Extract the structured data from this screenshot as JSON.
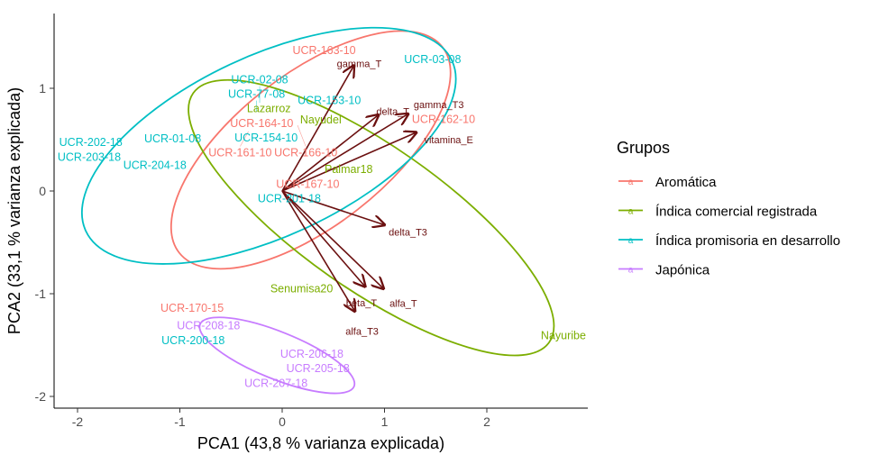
{
  "chart_data": {
    "type": "scatter",
    "subtype": "pca-biplot",
    "xlabel": "PCA1 (43,8 % varianza explicada)",
    "ylabel": "PCA2 (33,1 % varianza explicada)",
    "xlim": [
      -2.23,
      2.99
    ],
    "ylim": [
      -2.11,
      1.73
    ],
    "xticks": [
      "-2",
      "-1",
      "0",
      "1",
      "2"
    ],
    "yticks": [
      "-2",
      "-1",
      "0",
      "1"
    ],
    "grid": false,
    "legend": {
      "title": "Grupos",
      "placement": "right",
      "entries": [
        {
          "name": "Aromática",
          "color": "#F8766D"
        },
        {
          "name": "Índica comercial registrada",
          "color": "#7CAE00"
        },
        {
          "name": "Índica promisoria en desarrollo",
          "color": "#00BFC4"
        },
        {
          "name": "Japónica",
          "color": "#C77CFF"
        }
      ]
    },
    "points": [
      {
        "label": "UCR-163-10",
        "group": 0,
        "x": 0.41,
        "y": 1.32
      },
      {
        "label": "UCR-162-10",
        "group": 0,
        "x": 1.56,
        "y": 0.74
      },
      {
        "label": "UCR-161-10",
        "group": 0,
        "x": -0.33,
        "y": 0.58
      },
      {
        "label": "UCR-164-10",
        "group": 0,
        "x": -0.2,
        "y": 0.6
      },
      {
        "label": "UCR-166-10",
        "group": 0,
        "x": 0.15,
        "y": 0.64
      },
      {
        "label": "UCR-167-10",
        "group": 0,
        "x": 0.25,
        "y": 0.07
      },
      {
        "label": "UCR-170-15",
        "group": 0,
        "x": -0.88,
        "y": -1.14
      },
      {
        "label": "Lazarroz",
        "group": 1,
        "x": -0.13,
        "y": 0.8
      },
      {
        "label": "Nayudel",
        "group": 1,
        "x": 0.37,
        "y": 0.66
      },
      {
        "label": "Palmar18",
        "group": 1,
        "x": 0.65,
        "y": 0.17
      },
      {
        "label": "Senumisa20",
        "group": 1,
        "x": 0.19,
        "y": -0.95
      },
      {
        "label": "Nayuribe",
        "group": 1,
        "x": 2.76,
        "y": -1.41
      },
      {
        "label": "UCR-03-08",
        "group": 2,
        "x": 1.47,
        "y": 1.28
      },
      {
        "label": "UCR-02-08",
        "group": 2,
        "x": -0.22,
        "y": 0.86
      },
      {
        "label": "UCR-153-10",
        "group": 2,
        "x": 0.46,
        "y": 0.88
      },
      {
        "label": "UCR-77-08",
        "group": 2,
        "x": -0.25,
        "y": 0.77
      },
      {
        "label": "UCR-154-10",
        "group": 2,
        "x": -0.15,
        "y": 0.53
      },
      {
        "label": "UCR-01-08",
        "group": 2,
        "x": -1.07,
        "y": 0.51
      },
      {
        "label": "UCR-202-18",
        "group": 2,
        "x": -1.87,
        "y": 0.46
      },
      {
        "label": "UCR-203-18",
        "group": 2,
        "x": -1.84,
        "y": 0.34
      },
      {
        "label": "UCR-204-18",
        "group": 2,
        "x": -1.29,
        "y": 0.25
      },
      {
        "label": "UCR-201-18",
        "group": 2,
        "x": 0.07,
        "y": -0.04
      },
      {
        "label": "UCR-200-18",
        "group": 2,
        "x": -0.87,
        "y": -1.43
      },
      {
        "label": "UCR-208-18",
        "group": 3,
        "x": -0.72,
        "y": -1.34
      },
      {
        "label": "UCR-206-18",
        "group": 3,
        "x": 0.29,
        "y": -1.65
      },
      {
        "label": "UCR-205-18",
        "group": 3,
        "x": 0.35,
        "y": -1.73
      },
      {
        "label": "UCR-207-18",
        "group": 3,
        "x": -0.06,
        "y": -1.81
      }
    ],
    "ellipses": [
      {
        "group": 0,
        "cx": 0.28,
        "cy": 0.4,
        "a": 1.63,
        "b": 0.74,
        "angle": 38
      },
      {
        "group": 1,
        "cx": 0.87,
        "cy": -0.26,
        "a": 2.12,
        "b": 0.7,
        "angle": -35
      },
      {
        "group": 2,
        "cx": -0.13,
        "cy": 0.44,
        "a": 1.97,
        "b": 0.88,
        "angle": 25
      },
      {
        "group": 3,
        "cx": -0.05,
        "cy": -1.6,
        "a": 0.81,
        "b": 0.23,
        "angle": -22
      }
    ],
    "loadings_color": "#6B1010",
    "loadings": [
      {
        "label": "gamma_T",
        "x": 0.7,
        "y": 1.22
      },
      {
        "label": "delta_T",
        "x": 0.94,
        "y": 0.74
      },
      {
        "label": "gamma_T3",
        "x": 1.23,
        "y": 0.75
      },
      {
        "label": "vitamina_E",
        "x": 1.31,
        "y": 0.57
      },
      {
        "label": "delta_T3",
        "x": 1.0,
        "y": -0.33
      },
      {
        "label": "beta_T",
        "x": 0.81,
        "y": -0.93
      },
      {
        "label": "alfa_T",
        "x": 0.99,
        "y": -0.95
      },
      {
        "label": "alfa_T3",
        "x": 0.71,
        "y": -1.17
      }
    ]
  }
}
